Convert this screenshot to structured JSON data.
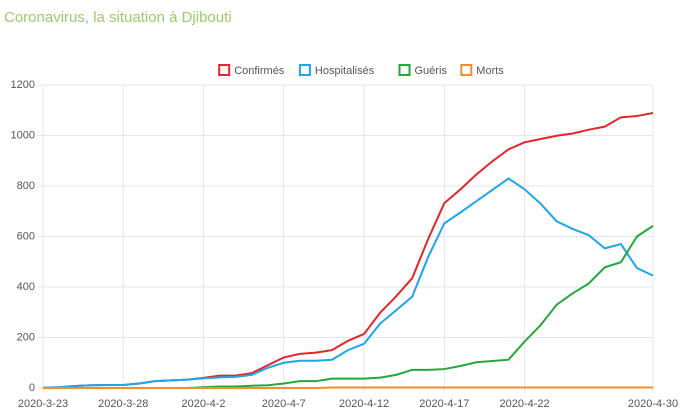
{
  "chart_data": {
    "type": "line",
    "title": "Coronavirus, la situation à Djibouti",
    "categories": [
      "2020-3-23",
      null,
      null,
      null,
      null,
      "2020-3-28",
      null,
      null,
      null,
      null,
      "2020-4-2",
      null,
      null,
      null,
      null,
      "2020-4-7",
      null,
      null,
      null,
      null,
      "2020-4-12",
      null,
      null,
      null,
      null,
      "2020-4-17",
      null,
      null,
      null,
      null,
      "2020-4-22",
      null,
      null,
      null,
      null,
      null,
      null,
      null,
      "2020-4-30"
    ],
    "series": [
      {
        "name": "Confirmés",
        "color": "#e3262b",
        "values": [
          1,
          3,
          8,
          11,
          12,
          12,
          18,
          27,
          30,
          33,
          40,
          49,
          49,
          59,
          90,
          121,
          135,
          140,
          150,
          187,
          214,
          298,
          363,
          435,
          591,
          732,
          786,
          846,
          898,
          945,
          973,
          986,
          999,
          1008,
          1023,
          1035,
          1072,
          1077,
          1089
        ]
      },
      {
        "name": "Hospitalisés",
        "color": "#1ea6ea",
        "values": [
          1,
          3,
          8,
          11,
          12,
          12,
          18,
          27,
          30,
          33,
          38,
          42,
          44,
          52,
          80,
          100,
          108,
          108,
          112,
          150,
          175,
          255,
          308,
          362,
          520,
          652,
          695,
          740,
          785,
          830,
          787,
          730,
          660,
          630,
          605,
          553,
          570,
          475,
          445
        ]
      },
      {
        "name": "Guéris",
        "color": "#23a93a",
        "values": [
          0,
          0,
          0,
          0,
          0,
          0,
          0,
          0,
          0,
          0,
          3,
          6,
          6,
          9,
          11,
          18,
          27,
          27,
          37,
          37,
          37,
          41,
          52,
          72,
          72,
          75,
          87,
          102,
          107,
          112,
          184,
          249,
          330,
          375,
          414,
          478,
          498,
          600,
          642
        ]
      },
      {
        "name": "Morts",
        "color": "#f28e2b",
        "values": [
          0,
          0,
          0,
          0,
          0,
          0,
          0,
          0,
          0,
          0,
          0,
          0,
          0,
          0,
          0,
          0,
          0,
          0,
          2,
          2,
          2,
          2,
          2,
          2,
          2,
          2,
          2,
          2,
          2,
          2,
          2,
          2,
          2,
          2,
          2,
          2,
          2,
          2,
          2
        ]
      }
    ],
    "ylim": [
      0,
      1200
    ],
    "yticks": [
      0,
      200,
      400,
      600,
      800,
      1000,
      1200
    ],
    "grid": true
  }
}
